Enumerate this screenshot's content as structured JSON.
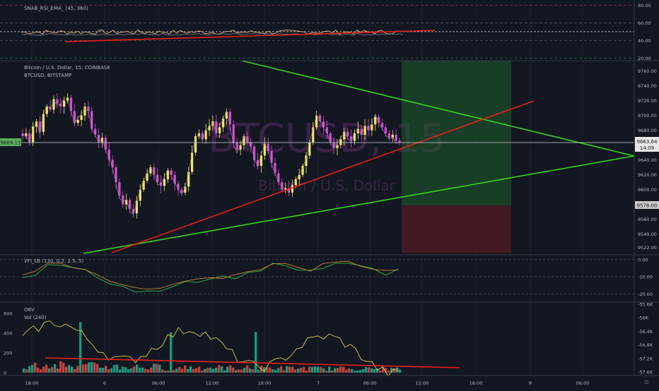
{
  "chart_data": {
    "type": "line",
    "watermark": {
      "symbol": "BTCUSD, 15",
      "name": "Bitcoin / U.S. Dollar"
    },
    "x_ticks": [
      "18:00",
      "6",
      "06:00",
      "12:00",
      "18:00",
      "7",
      "06:00",
      "12:00",
      "18:00",
      "8",
      "06:00"
    ],
    "rsi_panel": {
      "label": "SNAB_RSI_EMA_ (45, 360)",
      "y_ticks": [
        "80.00",
        "60.00",
        "40.00",
        "20.00"
      ],
      "ylim": [
        17,
        86
      ]
    },
    "price_panel": {
      "label1": "Bitcoin / U.S. Dollar, 15, COINBASE",
      "label2": "BTCUSD, BITSTAMP",
      "y_ticks": [
        "9760.00",
        "9740.00",
        "9720.00",
        "9700.00",
        "9680.00",
        "9660.00",
        "9640.00",
        "9620.00",
        "9600.00",
        "9580.00",
        "9560.00",
        "9540.00",
        "9522.00"
      ],
      "ylim": [
        9512,
        9774
      ],
      "last_price": "9663.64",
      "countdown": "14:09",
      "crosshair_price": "9669.11",
      "stop_level": "9578.00",
      "closes": [
        9672,
        9676,
        9664,
        9685,
        9692,
        9678,
        9702,
        9712,
        9708,
        9722,
        9716,
        9712,
        9720,
        9724,
        9706,
        9690,
        9694,
        9700,
        9712,
        9706,
        9682,
        9674,
        9664,
        9670,
        9654,
        9640,
        9630,
        9610,
        9592,
        9580,
        9586,
        9574,
        9568,
        9585,
        9600,
        9612,
        9622,
        9630,
        9620,
        9610,
        9605,
        9614,
        9626,
        9620,
        9608,
        9600,
        9596,
        9604,
        9624,
        9650,
        9672,
        9676,
        9668,
        9680,
        9686,
        9692,
        9676,
        9684,
        9696,
        9705,
        9688,
        9664,
        9654,
        9660,
        9672,
        9664,
        9658,
        9640,
        9632,
        9646,
        9662,
        9652,
        9636,
        9622,
        9610,
        9600,
        9602,
        9596,
        9606,
        9614,
        9620,
        9632,
        9646,
        9664,
        9684,
        9700,
        9692,
        9684,
        9676,
        9664,
        9656,
        9660,
        9668,
        9678,
        9672,
        9666,
        9676,
        9682,
        9674,
        9686,
        9680,
        9688,
        9698,
        9690,
        9684,
        9676,
        9670,
        9674,
        9666,
        9663.64
      ]
    },
    "vfi_panel": {
      "label": "VFI_LB (130, 0.2, 2.5, 5)",
      "y_ticks": [
        "0.00",
        "-10.00",
        "-20.00"
      ]
    },
    "obv_panel": {
      "label1": "OBV",
      "label2": "Vol (240)",
      "y_ticks_left": [
        "600",
        "400",
        "200",
        "0"
      ],
      "y_ticks_right": [
        "-55.6K",
        "-56K",
        "-56.4K",
        "-56.8K",
        "-57.2K",
        "-57.6K"
      ]
    },
    "colors": {
      "background": "#131722",
      "grid": "#262a35",
      "candle_up": "#f5e663",
      "candle_down": "#d44fd1",
      "trend_green": "#35d41f",
      "trend_red": "#e8201a",
      "rsi_line": "#c8a070",
      "target_zone": "#1e5f2c",
      "stop_zone": "#5d1a24",
      "obv_line": "#d9cc46",
      "vol_up": "#21a489",
      "vol_down": "#d1473e"
    }
  }
}
